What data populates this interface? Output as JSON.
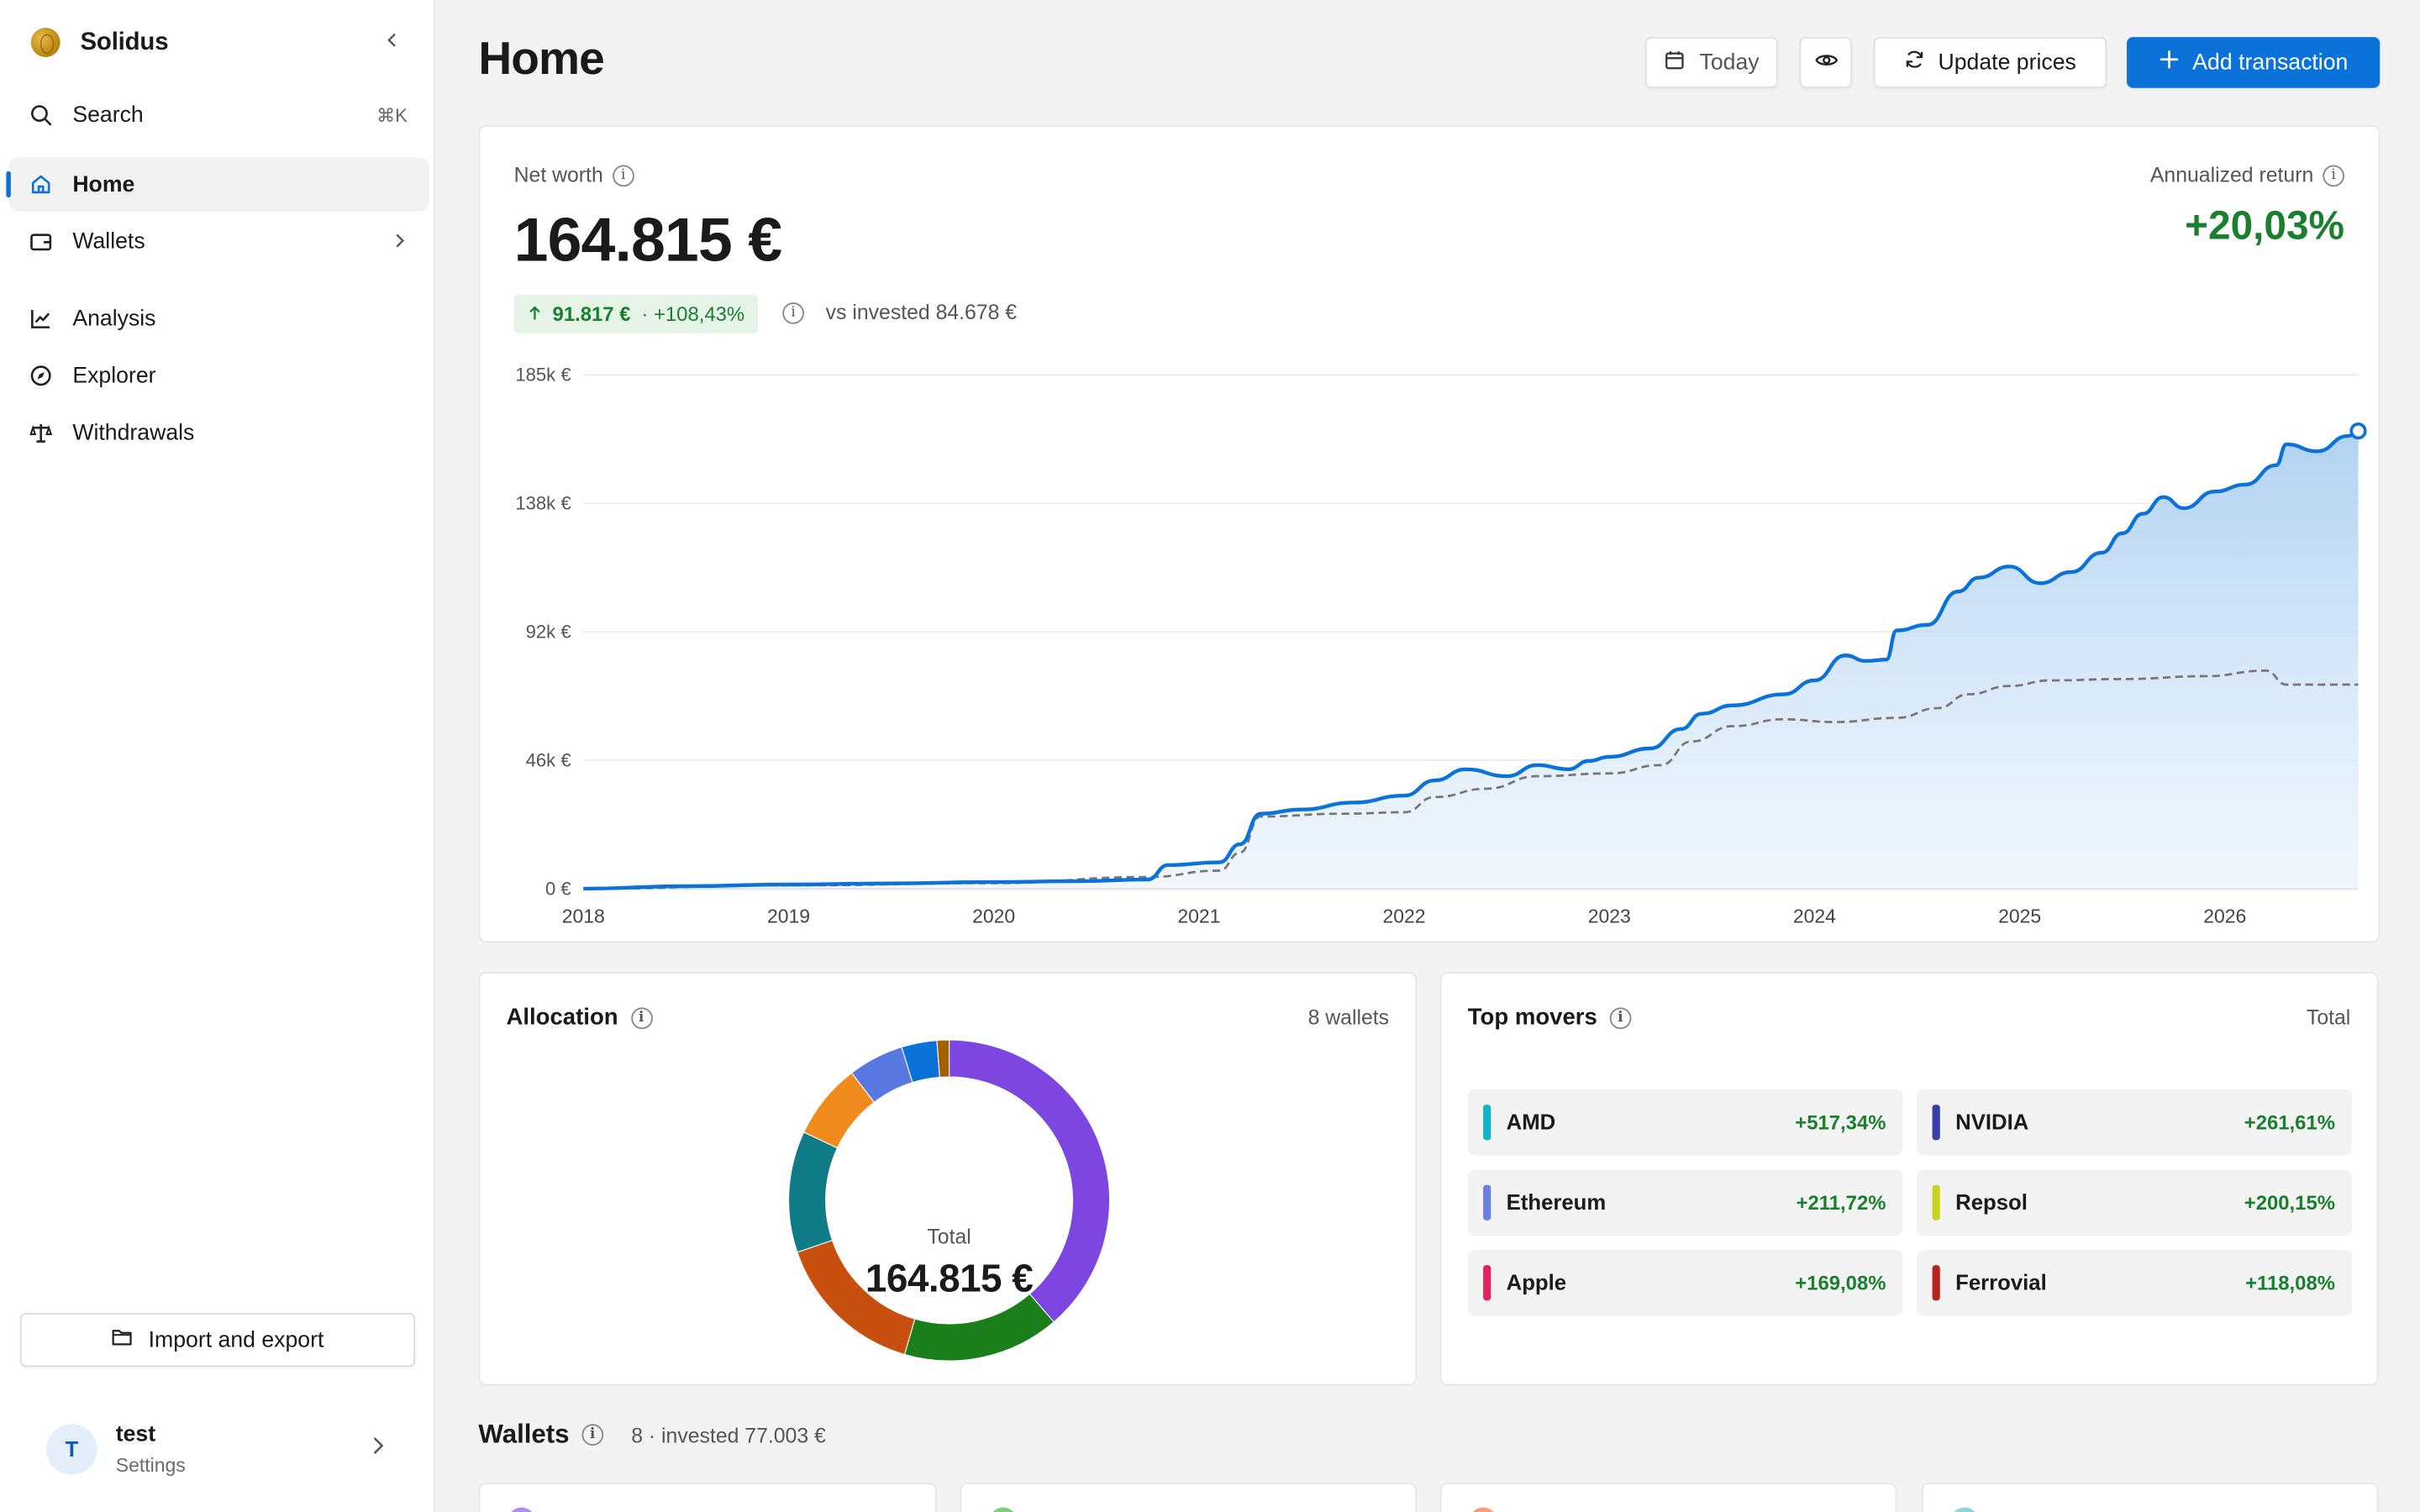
{
  "brand": {
    "name": "Solidus"
  },
  "sidebar": {
    "search": {
      "label": "Search",
      "shortcut": "⌘K"
    },
    "items": [
      {
        "label": "Home",
        "icon": "home-icon",
        "active": true
      },
      {
        "label": "Wallets",
        "icon": "wallet-icon"
      },
      {
        "label": "Analysis",
        "icon": "chart-line-icon"
      },
      {
        "label": "Explorer",
        "icon": "compass-icon"
      },
      {
        "label": "Withdrawals",
        "icon": "scale-icon"
      }
    ],
    "import_label": "Import and export",
    "user": {
      "initial": "T",
      "name": "test",
      "sub": "Settings"
    }
  },
  "header": {
    "title": "Home",
    "date_label": "Today",
    "update_label": "Update prices",
    "add_label": "Add transaction"
  },
  "net_worth": {
    "label": "Net worth",
    "value": "164.815 €",
    "gain": "91.817 €",
    "gain_pct": "· +108,43%",
    "vs_invested": "vs invested 84.678 €",
    "annualized_label": "Annualized return",
    "annualized_value": "+20,03%"
  },
  "chart_data": {
    "type": "area",
    "y_ticks": [
      "0 €",
      "46k €",
      "92k €",
      "138k €",
      "185k €"
    ],
    "x_ticks": [
      "2018",
      "2019",
      "2020",
      "2021",
      "2022",
      "2023",
      "2024",
      "2025",
      "2026"
    ],
    "ylim": [
      0,
      185000
    ],
    "xlim": [
      2018.0,
      2026.65
    ],
    "grid": true,
    "series": [
      {
        "color": "#0b72d9",
        "fill": true,
        "points": [
          [
            2018.0,
            0
          ],
          [
            2018.5,
            900
          ],
          [
            2019.0,
            1500
          ],
          [
            2019.5,
            1900
          ],
          [
            2020.0,
            2400
          ],
          [
            2020.4,
            2700
          ],
          [
            2020.75,
            3300
          ],
          [
            2020.85,
            8500
          ],
          [
            2021.1,
            9500
          ],
          [
            2021.2,
            16000
          ],
          [
            2021.3,
            27000
          ],
          [
            2021.5,
            28500
          ],
          [
            2021.75,
            31000
          ],
          [
            2022.0,
            33500
          ],
          [
            2022.15,
            39000
          ],
          [
            2022.3,
            43000
          ],
          [
            2022.5,
            40500
          ],
          [
            2022.65,
            44500
          ],
          [
            2022.8,
            43000
          ],
          [
            2022.9,
            46000
          ],
          [
            2023.0,
            47500
          ],
          [
            2023.2,
            50500
          ],
          [
            2023.35,
            57500
          ],
          [
            2023.45,
            63000
          ],
          [
            2023.6,
            66000
          ],
          [
            2023.85,
            70000
          ],
          [
            2024.0,
            75000
          ],
          [
            2024.15,
            84000
          ],
          [
            2024.25,
            82000
          ],
          [
            2024.35,
            82500
          ],
          [
            2024.4,
            93000
          ],
          [
            2024.55,
            95000
          ],
          [
            2024.7,
            107000
          ],
          [
            2024.8,
            112000
          ],
          [
            2024.95,
            116000
          ],
          [
            2025.1,
            110000
          ],
          [
            2025.25,
            114000
          ],
          [
            2025.4,
            121000
          ],
          [
            2025.5,
            128000
          ],
          [
            2025.6,
            135000
          ],
          [
            2025.7,
            141000
          ],
          [
            2025.8,
            137000
          ],
          [
            2025.95,
            143000
          ],
          [
            2026.1,
            145500
          ],
          [
            2026.25,
            152500
          ],
          [
            2026.3,
            160000
          ],
          [
            2026.45,
            157500
          ],
          [
            2026.6,
            163000
          ],
          [
            2026.65,
            164815
          ]
        ]
      },
      {
        "color": "#777777",
        "dashed": true,
        "points": [
          [
            2018.0,
            0
          ],
          [
            2019.0,
            1200
          ],
          [
            2020.0,
            2000
          ],
          [
            2020.75,
            4200
          ],
          [
            2021.1,
            6500
          ],
          [
            2021.2,
            13000
          ],
          [
            2021.3,
            26000
          ],
          [
            2021.7,
            27000
          ],
          [
            2022.0,
            27500
          ],
          [
            2022.15,
            33000
          ],
          [
            2022.4,
            36000
          ],
          [
            2022.65,
            40500
          ],
          [
            2023.0,
            41500
          ],
          [
            2023.25,
            44500
          ],
          [
            2023.4,
            53000
          ],
          [
            2023.6,
            58500
          ],
          [
            2023.85,
            61000
          ],
          [
            2024.1,
            60000
          ],
          [
            2024.4,
            61500
          ],
          [
            2024.6,
            65000
          ],
          [
            2024.75,
            70000
          ],
          [
            2024.95,
            73000
          ],
          [
            2025.15,
            75000
          ],
          [
            2025.5,
            75500
          ],
          [
            2025.9,
            76500
          ],
          [
            2026.2,
            78500
          ],
          [
            2026.3,
            73500
          ],
          [
            2026.65,
            73500
          ]
        ]
      }
    ]
  },
  "allocation": {
    "title": "Allocation",
    "count": "8 wallets",
    "center_label": "Total",
    "center_value": "164.815 €",
    "chart_data": {
      "type": "pie",
      "slices": [
        {
          "value": 38.0,
          "color": "#7e46e0"
        },
        {
          "value": 15.5,
          "color": "#1a7f1a"
        },
        {
          "value": 15.0,
          "color": "#c8500f"
        },
        {
          "value": 12.0,
          "color": "#0e7b86"
        },
        {
          "value": 7.5,
          "color": "#f08c1e"
        },
        {
          "value": 5.5,
          "color": "#5a78e2"
        },
        {
          "value": 3.5,
          "color": "#0b72d9"
        },
        {
          "value": 1.2,
          "color": "#a65f00"
        }
      ]
    }
  },
  "top_movers": {
    "title": "Top movers",
    "right": "Total",
    "items": [
      {
        "name": "AMD",
        "pct": "+517,34%",
        "color": "#13b3c7"
      },
      {
        "name": "NVIDIA",
        "pct": "+261,61%",
        "color": "#3a3fa8"
      },
      {
        "name": "Ethereum",
        "pct": "+211,72%",
        "color": "#6b7fe0"
      },
      {
        "name": "Repsol",
        "pct": "+200,15%",
        "color": "#c9d61e"
      },
      {
        "name": "Apple",
        "pct": "+169,08%",
        "color": "#e0245e"
      },
      {
        "name": "Ferrovial",
        "pct": "+118,08%",
        "color": "#b8231d"
      }
    ]
  },
  "wallets": {
    "title": "Wallets",
    "sub": "8 · invested 77.003 €",
    "dots": [
      "#b48bf0",
      "#7fce7f",
      "#f5a07a",
      "#8bd4e0"
    ]
  }
}
